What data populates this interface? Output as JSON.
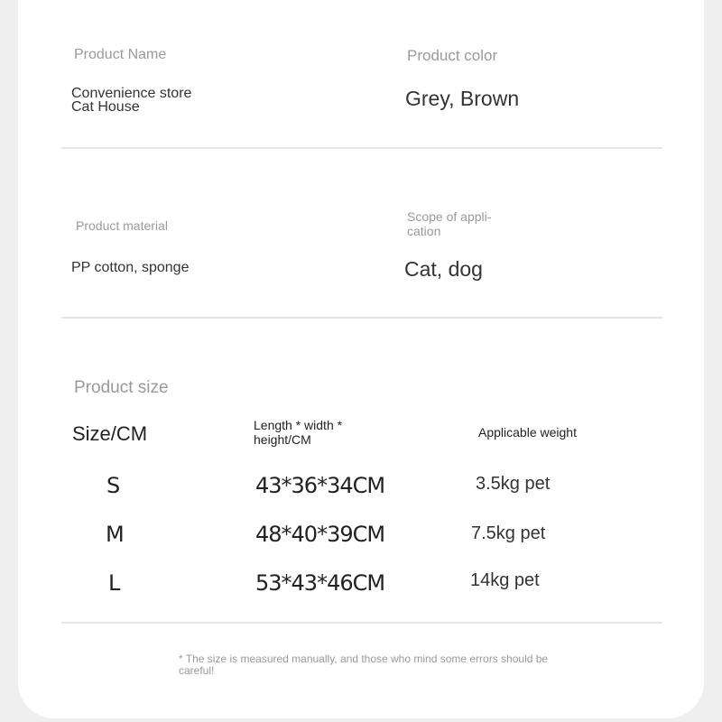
{
  "specs": [
    {
      "label": "Product Name",
      "value": "Convenience store Cat House"
    },
    {
      "label": "Product color",
      "value": "Grey, Brown"
    },
    {
      "label": "Product material",
      "value": "PP cotton, sponge"
    },
    {
      "label": "Scope of appli-\ncation",
      "value": "Cat, dog"
    }
  ],
  "size": {
    "title": "Product size",
    "headers": [
      "Size/CM",
      "Length * width * height/CM",
      "Applicable weight"
    ],
    "rows": [
      {
        "size": "S",
        "dims": "43*36*34CM",
        "weight": "3.5kg pet"
      },
      {
        "size": "M",
        "dims": "48*40*39CM",
        "weight": "7.5kg pet"
      },
      {
        "size": "L",
        "dims": "53*43*46CM",
        "weight": "14kg pet"
      }
    ]
  },
  "note": "* The size is measured manually, and those who mind some errors should be careful!"
}
